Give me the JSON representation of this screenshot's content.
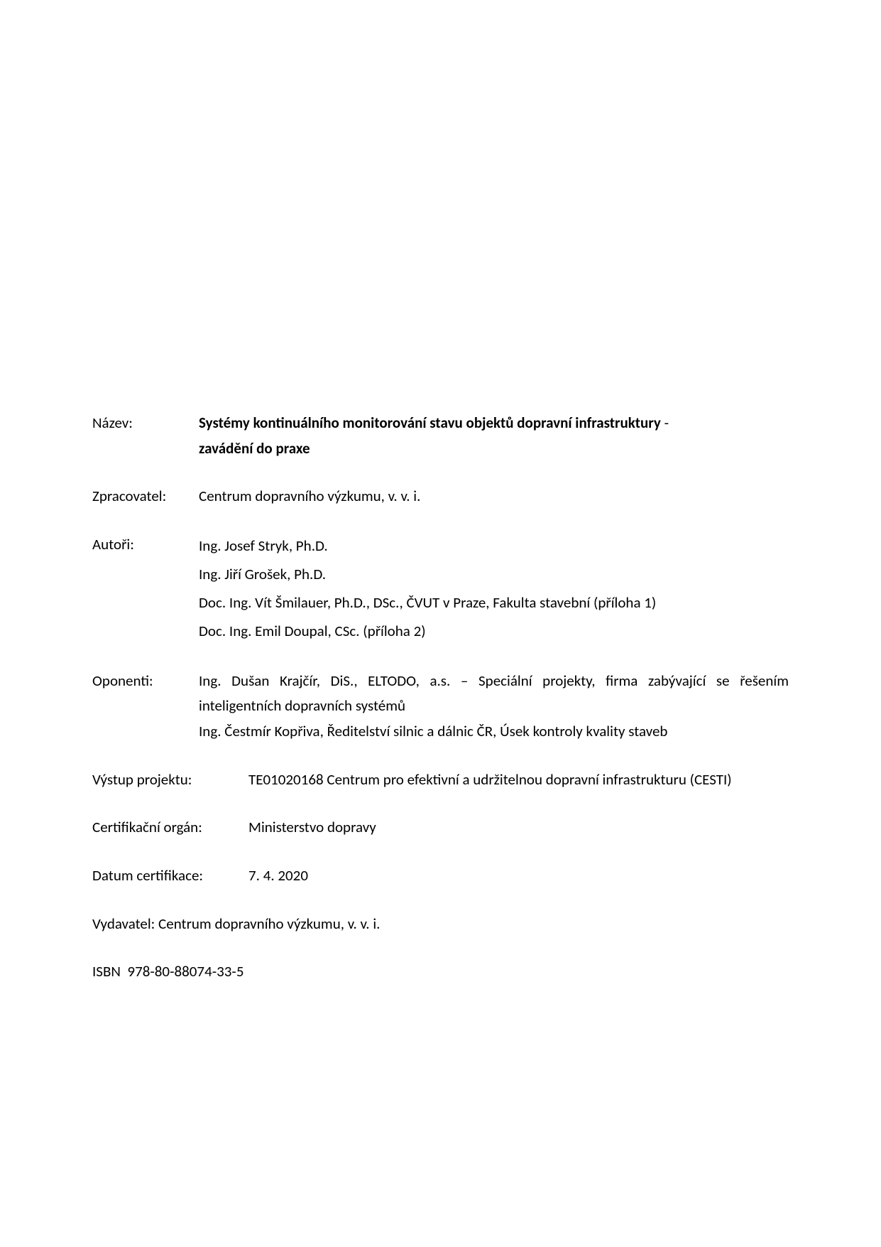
{
  "labels": {
    "nazev": "Název:",
    "zpracovatel": "Zpracovatel:",
    "autori": "Autoři:",
    "oponenti": "Oponenti:",
    "vystup_projektu": "Výstup projektu:",
    "certifikacni_organ": "Certifikační orgán:",
    "datum_certifikace": "Datum certifikace:",
    "vydavatel": "Vydavatel:",
    "isbn_label": "ISBN"
  },
  "title": {
    "main": "Systémy kontinuálního monitorování stavu objektů dopravní infrastruktury",
    "dash": " - ",
    "sub": "zavádění do praxe"
  },
  "zpracovatel_value": "Centrum dopravního výzkumu, v. v. i.",
  "autori": {
    "a1": "Ing. Josef Stryk, Ph.D.",
    "a2": "Ing. Jiří Grošek, Ph.D.",
    "a3": "Doc. Ing. Vít Šmilauer, Ph.D., DSc., ČVUT v Praze, Fakulta stavební (příloha 1)",
    "a4": "Doc. Ing. Emil Doupal, CSc. (příloha 2)"
  },
  "oponenti": {
    "o1": "Ing. Dušan Krajčír, DiS., ELTODO, a.s. – Speciální projekty, firma zabývající se řešením inteligentních dopravních systémů",
    "o2": "Ing. Čestmír Kopřiva, Ředitelství silnic a dálnic ČR, Úsek kontroly kvality staveb"
  },
  "vystup_projektu_value": "TE01020168 Centrum pro efektivní a udržitelnou dopravní infrastrukturu (CESTI)",
  "certifikacni_organ_value": "Ministerstvo dopravy",
  "datum_certifikace_value": "7. 4. 2020",
  "vydavatel_value": "Centrum dopravního výzkumu, v. v. i.",
  "isbn_value": "978-80-88074-33-5"
}
